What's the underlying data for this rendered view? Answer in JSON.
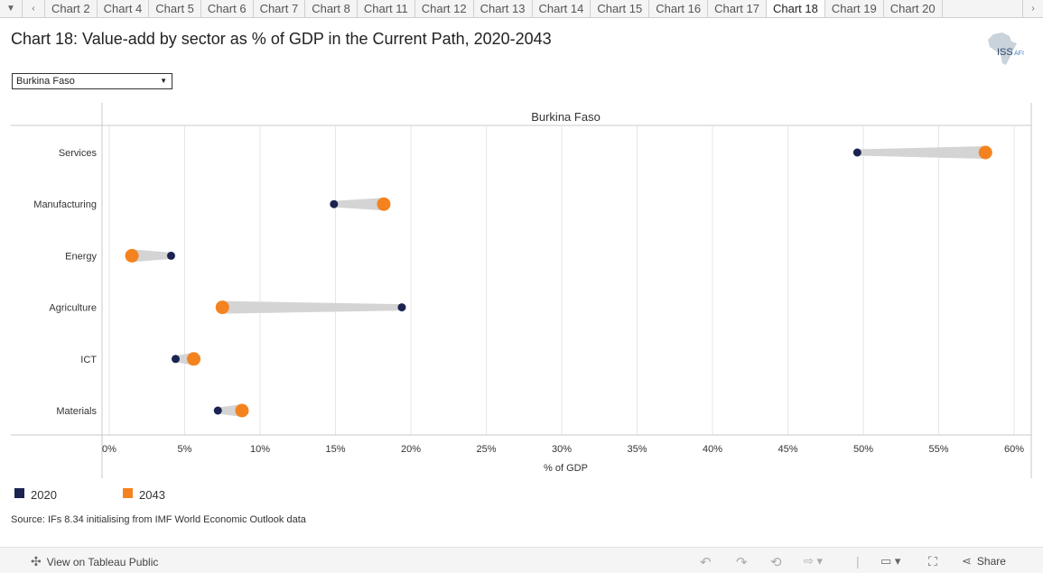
{
  "tabs": {
    "items": [
      "Chart 2",
      "Chart 4",
      "Chart 5",
      "Chart 6",
      "Chart 7",
      "Chart 8",
      "Chart 11",
      "Chart 12",
      "Chart 13",
      "Chart 14",
      "Chart 15",
      "Chart 16",
      "Chart 17",
      "Chart 18",
      "Chart 19",
      "Chart 20"
    ],
    "active": "Chart 18"
  },
  "header": {
    "title": "Chart 18: Value-add by sector as % of GDP in the Current Path, 2020-2043",
    "logo_text": "ISS",
    "logo_sub": "AFI"
  },
  "filter": {
    "selected": "Burkina Faso"
  },
  "legend": [
    {
      "label": "2020",
      "color": "#1b2451"
    },
    {
      "label": "2043",
      "color": "#f4831f"
    }
  ],
  "source": "Source: IFs 8.34 initialising from IMF World Economic Outlook data",
  "bottombar": {
    "view_label": "View on Tableau Public",
    "share_label": "Share"
  },
  "colors": {
    "line": "#d4d4d4",
    "grid": "#e6e6e6",
    "axis": "#999999"
  },
  "chart_data": {
    "type": "dumbbell",
    "panel_title": "Burkina Faso",
    "xlabel": "% of GDP",
    "xlim": [
      0,
      61
    ],
    "xticks": [
      0,
      5,
      10,
      15,
      20,
      25,
      30,
      35,
      40,
      45,
      50,
      55,
      60
    ],
    "xtick_labels": [
      "0%",
      "5%",
      "10%",
      "15%",
      "20%",
      "25%",
      "30%",
      "35%",
      "40%",
      "45%",
      "50%",
      "55%",
      "60%"
    ],
    "categories": [
      "Services",
      "Manufacturing",
      "Energy",
      "Agriculture",
      "ICT",
      "Materials"
    ],
    "series": [
      {
        "name": "2020",
        "values": [
          49.6,
          14.9,
          4.1,
          19.4,
          4.4,
          7.2
        ]
      },
      {
        "name": "2043",
        "values": [
          58.1,
          18.2,
          1.5,
          7.5,
          5.6,
          8.8
        ]
      }
    ]
  }
}
